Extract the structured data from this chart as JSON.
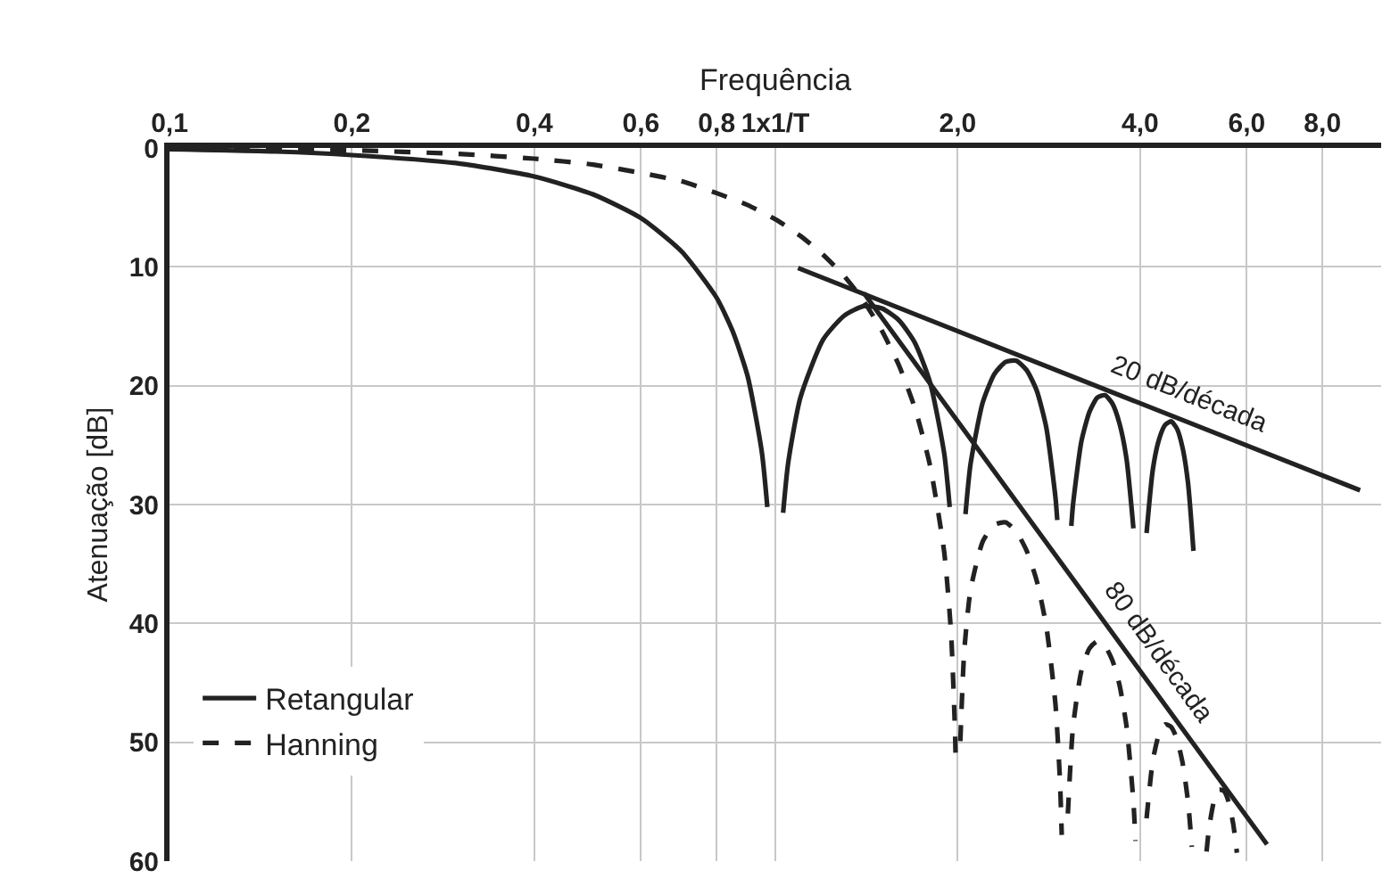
{
  "chart_data": {
    "type": "line",
    "xlabel": "Frequência",
    "ylabel": "Atenuação [dB]",
    "log": "x",
    "grid": true,
    "legend": "bottom left",
    "xlim": [
      0.1,
      10
    ],
    "ylim": [
      60,
      0
    ],
    "xticks": [
      {
        "value": 0.1,
        "label": "0,1"
      },
      {
        "value": 0.2,
        "label": "0,2"
      },
      {
        "value": 0.4,
        "label": "0,4"
      },
      {
        "value": 0.6,
        "label": "0,6"
      },
      {
        "value": 0.8,
        "label": "0,8"
      },
      {
        "value": 1,
        "label": "1x1/T"
      },
      {
        "value": 2,
        "label": "2,0"
      },
      {
        "value": 4,
        "label": "4,0"
      },
      {
        "value": 6,
        "label": "6,0"
      },
      {
        "value": 8,
        "label": "8,0"
      }
    ],
    "yticks": [
      0,
      10,
      20,
      30,
      40,
      50,
      60
    ],
    "series": [
      {
        "name": "Retangular",
        "color": "#222222",
        "line_style": "solid",
        "x": [
          0.1,
          0.15,
          0.2,
          0.3,
          0.4,
          0.5,
          0.6,
          0.7,
          0.8,
          0.85,
          0.9,
          0.95,
          0.97,
          0.99,
          1.03,
          1.05,
          1.1,
          1.2,
          1.3,
          1.4,
          1.5,
          1.6,
          1.7,
          1.8,
          1.9,
          1.94,
          1.99,
          2.06,
          2.1,
          2.2,
          2.3,
          2.4,
          2.5,
          2.6,
          2.7,
          2.8,
          2.9,
          2.92,
          3.0,
          3.08,
          3.1,
          3.2,
          3.3,
          3.4,
          3.5,
          3.6,
          3.7,
          3.8,
          3.9,
          3.99,
          4.1,
          4.2,
          4.3,
          4.4,
          4.5,
          4.6,
          4.7,
          4.8,
          4.9
        ],
        "values": [
          0.1,
          0.3,
          0.6,
          1.3,
          2.4,
          3.9,
          5.9,
          8.7,
          12.6,
          15.4,
          19.2,
          25.6,
          30.2,
          null,
          30.7,
          26.5,
          21.0,
          16.1,
          14.1,
          13.3,
          13.5,
          14.5,
          16.4,
          19.7,
          25.7,
          30.2,
          null,
          30.8,
          26.6,
          21.4,
          19.0,
          18.0,
          17.9,
          18.7,
          20.4,
          23.5,
          29.4,
          31.3,
          null,
          31.8,
          30.0,
          24.7,
          22.2,
          21.0,
          20.8,
          21.5,
          23.2,
          26.2,
          32.0,
          null,
          32.4,
          27.0,
          24.5,
          23.3,
          23.0,
          23.6,
          25.2,
          28.2,
          33.9
        ]
      },
      {
        "name": "Hanning",
        "color": "#222222",
        "line_style": "dashed",
        "x": [
          0.1,
          0.2,
          0.3,
          0.4,
          0.5,
          0.6,
          0.7,
          0.8,
          0.9,
          1.0,
          1.1,
          1.2,
          1.3,
          1.4,
          1.5,
          1.6,
          1.7,
          1.8,
          1.9,
          1.95,
          1.98,
          1.985,
          2.0,
          2.02,
          2.05,
          2.1,
          2.2,
          2.3,
          2.4,
          2.5,
          2.6,
          2.7,
          2.8,
          2.9,
          2.95,
          2.97,
          3.0,
          3.04,
          3.1,
          3.2,
          3.3,
          3.4,
          3.5,
          3.6,
          3.7,
          3.8,
          3.9,
          3.93,
          4.0,
          4.1,
          4.2,
          4.3,
          4.4,
          4.5,
          4.6,
          4.7,
          4.8,
          4.87,
          5.0,
          5.15,
          5.2,
          5.3,
          5.4,
          5.5,
          5.6,
          5.7,
          5.78
        ],
        "values": [
          0.1,
          0.2,
          0.5,
          0.9,
          1.4,
          2.1,
          2.8,
          3.8,
          4.8,
          6.0,
          7.4,
          9.0,
          10.8,
          12.9,
          15.4,
          18.3,
          21.9,
          26.7,
          34.0,
          40.8,
          49.2,
          51.8,
          null,
          49.9,
          42.4,
          37.2,
          33.1,
          31.7,
          31.5,
          32.3,
          33.9,
          36.4,
          40.2,
          46.8,
          53.2,
          57.8,
          null,
          56.0,
          48.7,
          44.0,
          42.1,
          41.5,
          41.9,
          43.1,
          45.2,
          48.7,
          55.0,
          58.3,
          null,
          56.4,
          51.5,
          49.3,
          48.5,
          48.7,
          49.7,
          51.7,
          55.0,
          58.8,
          null,
          59.2,
          57.2,
          54.9,
          54.0,
          54.1,
          55.0,
          56.9,
          59.3
        ]
      },
      {
        "color": "#222222",
        "line_style": "solid",
        "x": [
          1.09,
          9.23
        ],
        "values": [
          10.1,
          28.8
        ]
      },
      {
        "color": "#222222",
        "line_style": "solid",
        "x": [
          1.4,
          6.48
        ],
        "values": [
          12.2,
          58.6
        ]
      }
    ],
    "annotations": [
      "20 dB/década",
      "80 dB/década"
    ]
  }
}
